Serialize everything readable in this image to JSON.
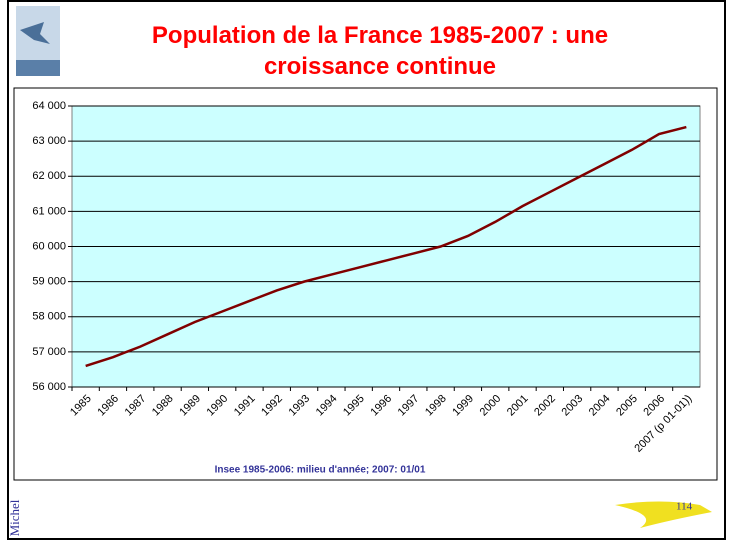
{
  "chart_data": {
    "type": "line",
    "title": "Population de la France 1985-2007 : une croissance continue",
    "source": "Insee 1985-2006: milieu d'année; 2007: 01/01",
    "categories": [
      "1985",
      "1986",
      "1987",
      "1988",
      "1989",
      "1990",
      "1991",
      "1992",
      "1993",
      "1994",
      "1995",
      "1996",
      "1997",
      "1998",
      "1999",
      "2000",
      "2001",
      "2002",
      "2003",
      "2004",
      "2005",
      "2006",
      "2007 (p 01-01))"
    ],
    "values": [
      56600,
      56850,
      57150,
      57500,
      57850,
      58150,
      58450,
      58750,
      59000,
      59200,
      59400,
      59600,
      59800,
      60000,
      60300,
      60700,
      61150,
      61550,
      61950,
      62350,
      62750,
      63200,
      63400
    ],
    "color": "#800000",
    "ylim": [
      56000,
      64000
    ],
    "yticks": [
      {
        "value": 56000,
        "label": "56 000"
      },
      {
        "value": 57000,
        "label": "57 000"
      },
      {
        "value": 58000,
        "label": "58 000"
      },
      {
        "value": 59000,
        "label": "59 000"
      },
      {
        "value": 60000,
        "label": "60 000"
      },
      {
        "value": 61000,
        "label": "61 000"
      },
      {
        "value": 62000,
        "label": "62 000"
      },
      {
        "value": 63000,
        "label": "63 000"
      },
      {
        "value": 64000,
        "label": "64 000"
      }
    ],
    "grid": true,
    "plot_background": "#ccffff"
  },
  "footer": {
    "author": "Michel",
    "page": "114"
  }
}
